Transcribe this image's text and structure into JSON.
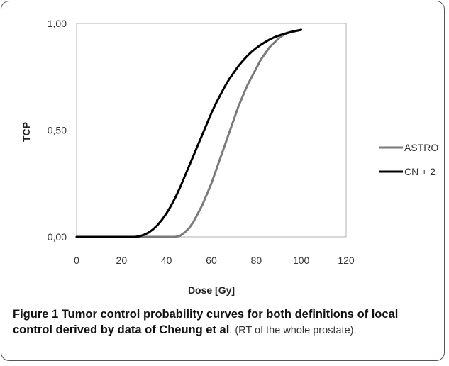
{
  "chart_data": {
    "type": "line",
    "xlabel": "Dose [Gy]",
    "ylabel": "TCP",
    "xlim": [
      0,
      120
    ],
    "ylim": [
      0,
      1
    ],
    "x_ticks": [
      "0",
      "20",
      "40",
      "60",
      "80",
      "100",
      "120"
    ],
    "y_ticks": [
      "0,00",
      "0,50",
      "1,00"
    ],
    "grid": false,
    "legend": "right",
    "series": [
      {
        "name": "ASTRO",
        "color": "#7a7a7a",
        "x": [
          0,
          10,
          20,
          30,
          40,
          44,
          46,
          48,
          50,
          52,
          54,
          56,
          58,
          60,
          62,
          64,
          66,
          68,
          70,
          72,
          74,
          76,
          78,
          80,
          82,
          84,
          86,
          88,
          90,
          92,
          94,
          96,
          98,
          100
        ],
        "y": [
          0,
          0,
          0,
          0,
          0,
          0.0,
          0.005,
          0.02,
          0.04,
          0.07,
          0.11,
          0.15,
          0.2,
          0.25,
          0.31,
          0.37,
          0.43,
          0.49,
          0.55,
          0.61,
          0.66,
          0.71,
          0.75,
          0.79,
          0.83,
          0.86,
          0.89,
          0.91,
          0.93,
          0.945,
          0.955,
          0.96,
          0.965,
          0.97
        ]
      },
      {
        "name": "CN + 2",
        "color": "#000000",
        "x": [
          0,
          10,
          20,
          26,
          28,
          30,
          32,
          34,
          36,
          38,
          40,
          42,
          44,
          46,
          48,
          50,
          52,
          54,
          56,
          58,
          60,
          62,
          64,
          66,
          68,
          70,
          72,
          74,
          76,
          78,
          80,
          82,
          84,
          86,
          88,
          90,
          92,
          94,
          96,
          98,
          100
        ],
        "y": [
          0,
          0,
          0,
          0,
          0.003,
          0.01,
          0.02,
          0.035,
          0.055,
          0.08,
          0.11,
          0.145,
          0.185,
          0.23,
          0.28,
          0.33,
          0.38,
          0.43,
          0.48,
          0.53,
          0.58,
          0.625,
          0.665,
          0.705,
          0.74,
          0.77,
          0.8,
          0.825,
          0.848,
          0.868,
          0.885,
          0.9,
          0.913,
          0.925,
          0.935,
          0.943,
          0.95,
          0.956,
          0.962,
          0.966,
          0.97
        ]
      }
    ]
  },
  "caption": {
    "figure_label": "Figure 1",
    "bold_text": "Tumor control probability curves for both definitions of local control derived by data of Cheung et al",
    "rest_text": ". (RT of the whole prostate)."
  }
}
